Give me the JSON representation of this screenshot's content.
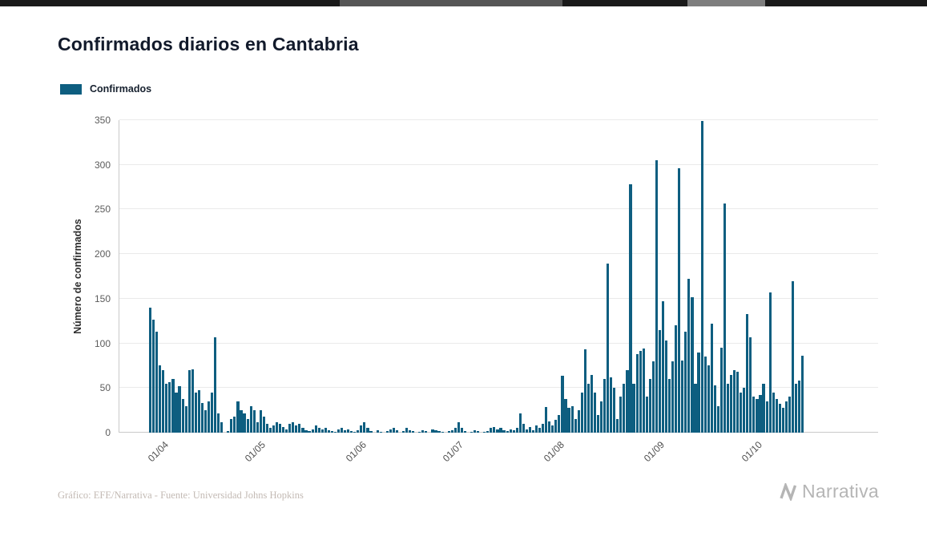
{
  "page": {
    "title": "Confirmados diarios en Cantabria",
    "footer": "Gráfico: EFE/Narrativa - Fuente: Universidad Johns Hopkins",
    "brand": "Narrativa"
  },
  "legend": {
    "label": "Confirmados",
    "color": "#0e5e80"
  },
  "chart_data": {
    "type": "bar",
    "title": "Confirmados diarios en Cantabria",
    "xlabel": "",
    "ylabel": "Número de confirmados",
    "ylim": [
      0,
      350
    ],
    "grid": true,
    "legend_position": "top-left",
    "bar_color": "#0e5e80",
    "y_ticks": [
      0,
      50,
      100,
      150,
      200,
      250,
      300,
      350
    ],
    "x_tick_labels": [
      "01/04",
      "01/05",
      "01/06",
      "01/07",
      "01/08",
      "01/09",
      "01/10"
    ],
    "x_tick_indices": [
      4,
      34,
      65,
      95,
      126,
      157,
      187
    ],
    "series": [
      {
        "name": "Confirmados",
        "values": [
          140,
          127,
          113,
          75,
          70,
          55,
          57,
          60,
          45,
          52,
          38,
          30,
          70,
          71,
          45,
          48,
          33,
          25,
          35,
          45,
          107,
          22,
          12,
          0,
          2,
          15,
          18,
          35,
          25,
          22,
          15,
          30,
          25,
          12,
          25,
          18,
          10,
          5,
          8,
          12,
          10,
          6,
          4,
          10,
          12,
          8,
          10,
          5,
          3,
          2,
          4,
          8,
          5,
          4,
          5,
          3,
          2,
          1,
          4,
          5,
          3,
          4,
          2,
          1,
          3,
          8,
          12,
          5,
          2,
          0,
          3,
          1,
          0,
          2,
          4,
          5,
          3,
          0,
          2,
          5,
          3,
          2,
          0,
          1,
          3,
          2,
          0,
          4,
          3,
          2,
          1,
          0,
          2,
          3,
          5,
          12,
          5,
          2,
          0,
          1,
          3,
          2,
          0,
          1,
          2,
          5,
          6,
          4,
          5,
          3,
          2,
          4,
          3,
          5,
          22,
          10,
          4,
          6,
          3,
          8,
          5,
          10,
          29,
          13,
          8,
          14,
          20,
          64,
          38,
          28,
          30,
          15,
          25,
          45,
          93,
          55,
          65,
          45,
          20,
          35,
          60,
          189,
          62,
          50,
          15,
          40,
          55,
          70,
          278,
          55,
          88,
          92,
          94,
          40,
          60,
          80,
          305,
          115,
          147,
          103,
          60,
          80,
          120,
          296,
          81,
          113,
          172,
          152,
          55,
          90,
          349,
          85,
          75,
          122,
          53,
          30,
          95,
          257,
          55,
          65,
          70,
          68,
          45,
          50,
          133,
          107,
          40,
          38,
          42,
          55,
          35,
          157,
          45,
          38,
          32,
          28,
          35,
          40,
          170,
          55,
          58,
          86
        ]
      }
    ]
  }
}
